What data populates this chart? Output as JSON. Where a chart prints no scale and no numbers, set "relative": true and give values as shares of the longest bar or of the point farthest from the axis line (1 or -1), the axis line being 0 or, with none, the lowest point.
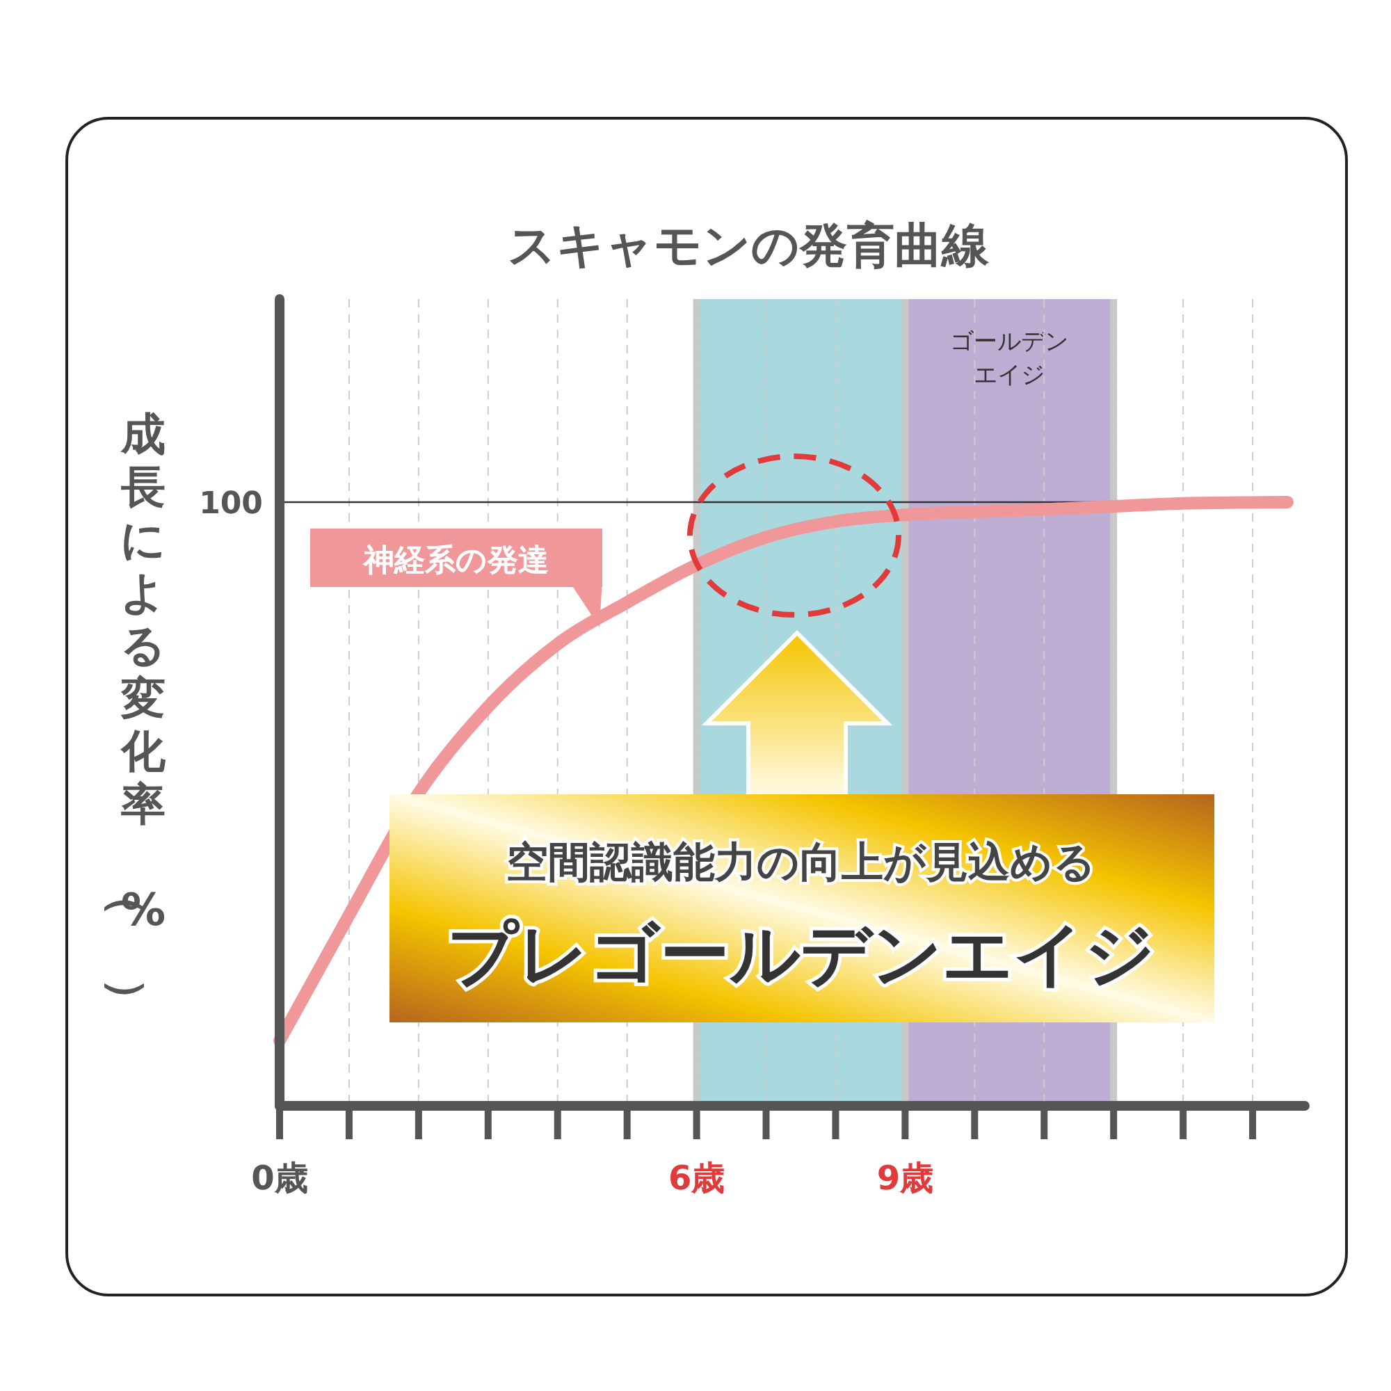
{
  "chart_data": {
    "type": "line",
    "title": "スキャモンの発育曲線",
    "ylabel": "成長による変化率（%）",
    "relative": true,
    "grid": "x",
    "x": [
      0,
      1,
      2,
      3,
      4,
      5,
      6,
      7,
      8,
      9,
      10,
      11,
      12,
      13,
      14.5
    ],
    "xlim": [
      0,
      14.75
    ],
    "xticks": [
      {
        "value": 0,
        "label": "0歳"
      },
      {
        "value": 1,
        "label": null
      },
      {
        "value": 2,
        "label": null
      },
      {
        "value": 3,
        "label": null
      },
      {
        "value": 4,
        "label": null
      },
      {
        "value": 5,
        "label": null
      },
      {
        "value": 6,
        "label": "6歳"
      },
      {
        "value": 7,
        "label": null
      },
      {
        "value": 8,
        "label": null
      },
      {
        "value": 9,
        "label": "9歳"
      },
      {
        "value": 10,
        "label": null
      },
      {
        "value": 11,
        "label": null
      },
      {
        "value": 12,
        "label": null
      },
      {
        "value": 13,
        "label": null
      },
      {
        "value": 14,
        "label": null
      }
    ],
    "series": [
      {
        "name": "神経系の発達",
        "color": "#f0979a",
        "values": [
          0.108,
          0.316,
          0.518,
          0.661,
          0.765,
          0.834,
          0.896,
          0.942,
          0.968,
          0.979,
          0.984,
          0.988,
          0.993,
          0.998,
          1.0
        ]
      }
    ],
    "ref_lines": [
      {
        "axis": "y",
        "value": 1,
        "label": "100",
        "color": "#333333"
      }
    ],
    "bands": [
      {
        "axis": "x",
        "from": 6,
        "to": 9,
        "color": "#a9d9df"
      },
      {
        "axis": "x",
        "from": 9,
        "to": 12,
        "color": "#bfaed4",
        "label": "ゴールデンエイジ"
      }
    ],
    "annotations": [
      "空間認識能力の向上が見込める",
      "プレゴールデンエイジ"
    ]
  }
}
